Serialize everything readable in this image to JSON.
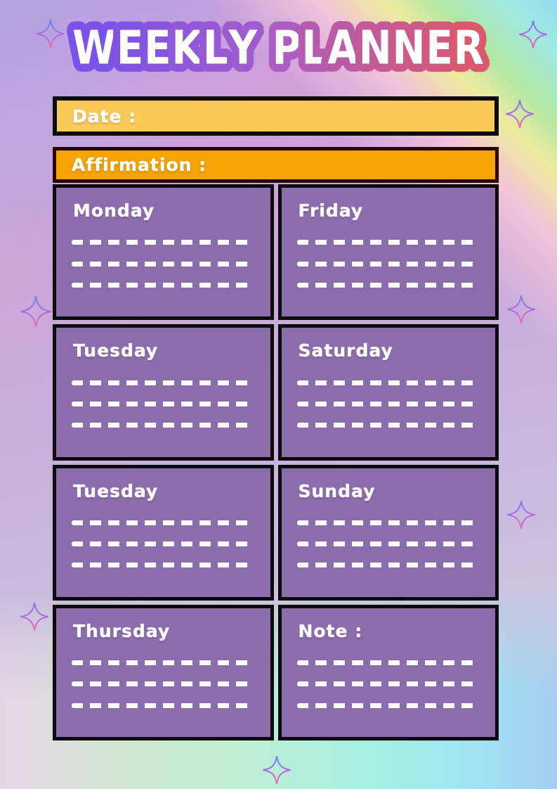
{
  "title": {
    "text": "WEEKLY PLANNER",
    "outline_colors": [
      "#7a53e8",
      "#a95cc8",
      "#d9596e"
    ]
  },
  "bars": {
    "date_label": "Date :",
    "affirmation_label": "Affirmation :"
  },
  "boxes": [
    {
      "label": "Monday"
    },
    {
      "label": "Friday"
    },
    {
      "label": "Tuesday"
    },
    {
      "label": "Saturday"
    },
    {
      "label": "Tuesday"
    },
    {
      "label": "Sunday"
    },
    {
      "label": "Thursday"
    },
    {
      "label": "Note :"
    }
  ],
  "colors": {
    "date_bar": "#f9ca58",
    "affirmation_bar": "#f6a303",
    "box_fill": "#8d6cad",
    "box_border": "#0b0b0b",
    "dash": "#ffffff",
    "text": "#ffffff"
  },
  "decor": {
    "sparkle_icon": "four-point-sparkle",
    "sparkle_gradient": [
      "#6f86f2",
      "#b06ce8",
      "#f46fae"
    ]
  }
}
